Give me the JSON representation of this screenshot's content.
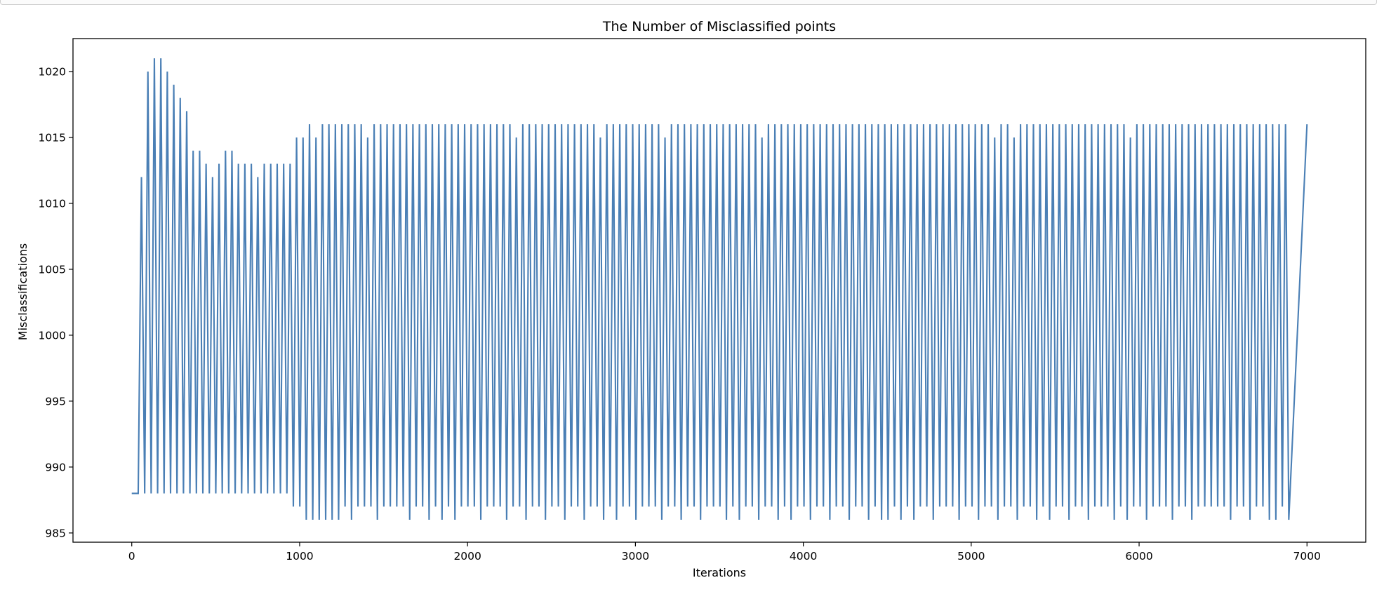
{
  "chart_data": {
    "type": "line",
    "title": "The Number of Misclassified points",
    "xlabel": "Iterations",
    "ylabel": "Misclassifications",
    "xlim": [
      -350,
      7350
    ],
    "ylim": [
      984.3,
      1022.5
    ],
    "x_ticks": [
      0,
      1000,
      2000,
      3000,
      4000,
      5000,
      6000,
      7000
    ],
    "y_ticks": [
      985,
      990,
      995,
      1000,
      1005,
      1010,
      1015,
      1020
    ],
    "grid": false,
    "line_color": "#4a7fb5",
    "series": [
      {
        "x_start": 0,
        "x_step": 38.5,
        "description_free": true,
        "peaks": [
          988,
          1012,
          1020,
          1021,
          1021,
          1020,
          1019,
          1018,
          1017,
          1014,
          1014,
          1013,
          1012,
          1013,
          1014,
          1014,
          1013,
          1013,
          1013,
          1012,
          1013,
          1013,
          1013,
          1013,
          1013,
          1015,
          1015,
          1016,
          1015,
          1016,
          1016,
          1016,
          1016,
          1016,
          1016,
          1016,
          1015,
          1016,
          1016,
          1016,
          1016,
          1016,
          1016,
          1016,
          1016,
          1016,
          1016,
          1016,
          1016,
          1016,
          1016,
          1016,
          1016,
          1016,
          1016,
          1016,
          1016,
          1016,
          1016,
          1015,
          1016,
          1016,
          1016,
          1016,
          1016,
          1016,
          1016,
          1016,
          1016,
          1016,
          1016,
          1016,
          1015,
          1016,
          1016,
          1016,
          1016,
          1016,
          1016,
          1016,
          1016,
          1016,
          1015,
          1016,
          1016,
          1016,
          1016,
          1016,
          1016,
          1016,
          1016,
          1016,
          1016,
          1016,
          1016,
          1016,
          1016,
          1015,
          1016,
          1016,
          1016,
          1016,
          1016,
          1016,
          1016,
          1016,
          1016,
          1016,
          1016,
          1016,
          1016,
          1016,
          1016,
          1016,
          1016,
          1016,
          1016,
          1016,
          1016,
          1016,
          1016,
          1016,
          1016,
          1016,
          1016,
          1016,
          1016,
          1016,
          1016,
          1016,
          1016,
          1016,
          1016,
          1015,
          1016,
          1016,
          1015,
          1016,
          1016,
          1016,
          1016,
          1016,
          1016,
          1016,
          1016,
          1016,
          1016,
          1016,
          1016,
          1016,
          1016,
          1016,
          1016,
          1016,
          1015,
          1016,
          1016,
          1016,
          1016,
          1016,
          1016,
          1016,
          1016,
          1016,
          1016,
          1016,
          1016,
          1016,
          1016,
          1016,
          1016,
          1016,
          1016,
          1016,
          1016,
          1016,
          1016,
          1016,
          1016
        ],
        "troughs": [
          988,
          988,
          988,
          988,
          988,
          988,
          988,
          988,
          988,
          988,
          988,
          988,
          988,
          988,
          988,
          988,
          988,
          988,
          988,
          988,
          988,
          988,
          988,
          988,
          987,
          987,
          986,
          986,
          986,
          986,
          986,
          986,
          987,
          986,
          987,
          987,
          987,
          986,
          987,
          987,
          987,
          987,
          986,
          987,
          987,
          986,
          987,
          986,
          987,
          986,
          987,
          987,
          987,
          986,
          987,
          987,
          987,
          986,
          987,
          987,
          986,
          987,
          987,
          986,
          987,
          987,
          986,
          987,
          987,
          986,
          987,
          987,
          986,
          987,
          986,
          987,
          987,
          986,
          987,
          987,
          987,
          986,
          987,
          987,
          986,
          987,
          987,
          986,
          987,
          987,
          987,
          986,
          987,
          986,
          987,
          987,
          986,
          987,
          987,
          986,
          987,
          986,
          987,
          987,
          986,
          987,
          987,
          986,
          987,
          987,
          986,
          987,
          987,
          986,
          987,
          986,
          986,
          987,
          986,
          987,
          986,
          987,
          987,
          986,
          987,
          987,
          987,
          986,
          987,
          987,
          986,
          987,
          987,
          986,
          987,
          987,
          986,
          987,
          987,
          986,
          987,
          986,
          987,
          987,
          986,
          987,
          987,
          986,
          987,
          987,
          987,
          986,
          987,
          986,
          987,
          987,
          986,
          987,
          987,
          987,
          986,
          987,
          987,
          986,
          987,
          987,
          987,
          987,
          987,
          986,
          987,
          987,
          986,
          987,
          987,
          986,
          986,
          987,
          986,
          986,
          986
        ]
      }
    ]
  }
}
